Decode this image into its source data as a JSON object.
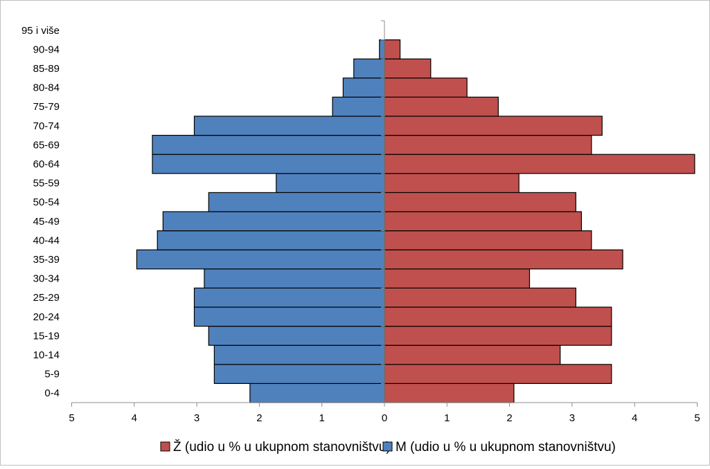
{
  "chart_data": {
    "type": "bar",
    "orientation": "horizontal",
    "layout": "population-pyramid",
    "categories": [
      "0-4",
      "5-9",
      "10-14",
      "15-19",
      "20-24",
      "25-29",
      "30-34",
      "35-39",
      "40-44",
      "45-49",
      "50-54",
      "55-59",
      "60-64",
      "65-69",
      "70-74",
      "75-79",
      "80-84",
      "85-89",
      "90-94",
      "95 i više"
    ],
    "series": [
      {
        "name": "Ž (udio u % u ukupnom stanovništvu)",
        "side": "right",
        "color": "#C0504D",
        "values": [
          2.07,
          3.63,
          2.81,
          3.63,
          3.63,
          3.06,
          2.32,
          3.81,
          3.31,
          3.15,
          3.06,
          2.15,
          4.96,
          3.31,
          3.48,
          1.82,
          1.32,
          0.74,
          0.25,
          0
        ]
      },
      {
        "name": "M (udio u % u ukupnom stanovništvu)",
        "side": "left",
        "color": "#4F81BD",
        "values": [
          2.15,
          2.72,
          2.72,
          2.81,
          3.04,
          3.04,
          2.88,
          3.96,
          3.63,
          3.54,
          2.81,
          1.73,
          3.71,
          3.71,
          3.04,
          0.83,
          0.66,
          0.49,
          0.08,
          0
        ]
      }
    ],
    "xlim": [
      -5,
      5
    ],
    "xticks": [
      -5,
      -4,
      -3,
      -2,
      -1,
      0,
      1,
      2,
      3,
      4,
      5
    ],
    "xtick_labels": [
      "5",
      "4",
      "3",
      "2",
      "1",
      "0",
      "1",
      "2",
      "3",
      "4",
      "5"
    ],
    "grid": false,
    "legend_position": "bottom"
  }
}
